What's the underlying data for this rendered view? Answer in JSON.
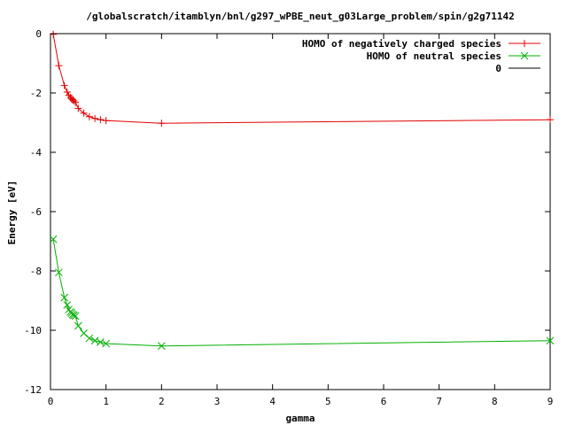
{
  "chart_data": {
    "type": "line",
    "title": "/globalscratch/itamblyn/bnl/g297_wPBE_neut_g03Large_problem/spin/g2g71142",
    "xlabel": "gamma",
    "ylabel": "Energy [eV]",
    "xlim": [
      0,
      9
    ],
    "ylim": [
      -12,
      0
    ],
    "x_ticks": [
      "0",
      "1",
      "2",
      "3",
      "4",
      "5",
      "6",
      "7",
      "8",
      "9"
    ],
    "y_ticks": [
      "0",
      "-2",
      "-4",
      "-6",
      "-8",
      "-10",
      "-12"
    ],
    "legend_position": "top-right",
    "grid": false,
    "series": [
      {
        "name": "HOMO of negatively charged species",
        "color": "#e00000",
        "marker": "plus",
        "x": [
          0.05,
          0.15,
          0.25,
          0.3,
          0.33,
          0.36,
          0.38,
          0.4,
          0.42,
          0.45,
          0.5,
          0.6,
          0.7,
          0.8,
          0.9,
          1.0,
          2.0,
          9.0
        ],
        "y": [
          -0.02,
          -1.08,
          -1.75,
          -1.97,
          -2.08,
          -2.15,
          -2.2,
          -2.23,
          -2.27,
          -2.32,
          -2.52,
          -2.68,
          -2.8,
          -2.86,
          -2.9,
          -2.93,
          -3.02,
          -2.9
        ]
      },
      {
        "name": "HOMO of neutral species",
        "color": "#00b000",
        "marker": "cross",
        "x": [
          0.05,
          0.15,
          0.25,
          0.3,
          0.33,
          0.36,
          0.38,
          0.4,
          0.42,
          0.45,
          0.5,
          0.6,
          0.7,
          0.8,
          0.9,
          1.0,
          2.0,
          9.0
        ],
        "y": [
          -6.93,
          -8.05,
          -8.9,
          -9.15,
          -9.3,
          -9.38,
          -9.42,
          -9.47,
          -9.5,
          -9.52,
          -9.85,
          -10.1,
          -10.27,
          -10.35,
          -10.4,
          -10.45,
          -10.53,
          -10.35
        ]
      },
      {
        "name": "0",
        "color": "#000000",
        "marker": "none",
        "x": [
          0,
          9
        ],
        "y": [
          0,
          0
        ]
      }
    ]
  }
}
